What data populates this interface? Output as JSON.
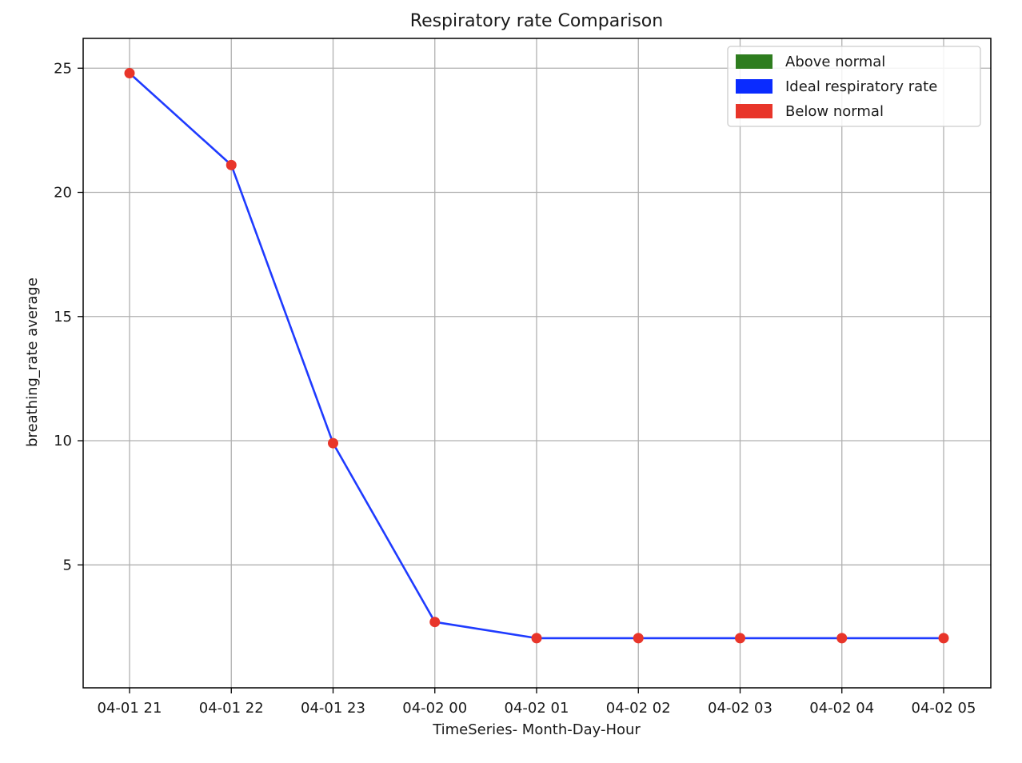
{
  "chart_data": {
    "type": "line",
    "title": "Respiratory rate Comparison",
    "xlabel": "TimeSeries- Month-Day-Hour",
    "ylabel": "breathing_rate average",
    "categories": [
      "04-01 21",
      "04-01 22",
      "04-01 23",
      "04-02 00",
      "04-02 01",
      "04-02 02",
      "04-02 03",
      "04-02 04",
      "04-02 05"
    ],
    "series": [
      {
        "values": [
          24.8,
          21.1,
          9.9,
          2.7,
          2.05,
          2.05,
          2.05,
          2.05,
          2.05
        ],
        "line_color": "#1f3bff",
        "marker_color": "#e8352a"
      }
    ],
    "ylim": [
      0.05,
      26.2
    ],
    "yticks": [
      5,
      10,
      15,
      20,
      25
    ],
    "grid": true,
    "legend": {
      "placement": "top-right",
      "entries": [
        {
          "label": "Above normal",
          "color": "#2e7d1f"
        },
        {
          "label": "Ideal respiratory rate",
          "color": "#0a2bff"
        },
        {
          "label": "Below normal",
          "color": "#e8352a"
        }
      ]
    }
  }
}
